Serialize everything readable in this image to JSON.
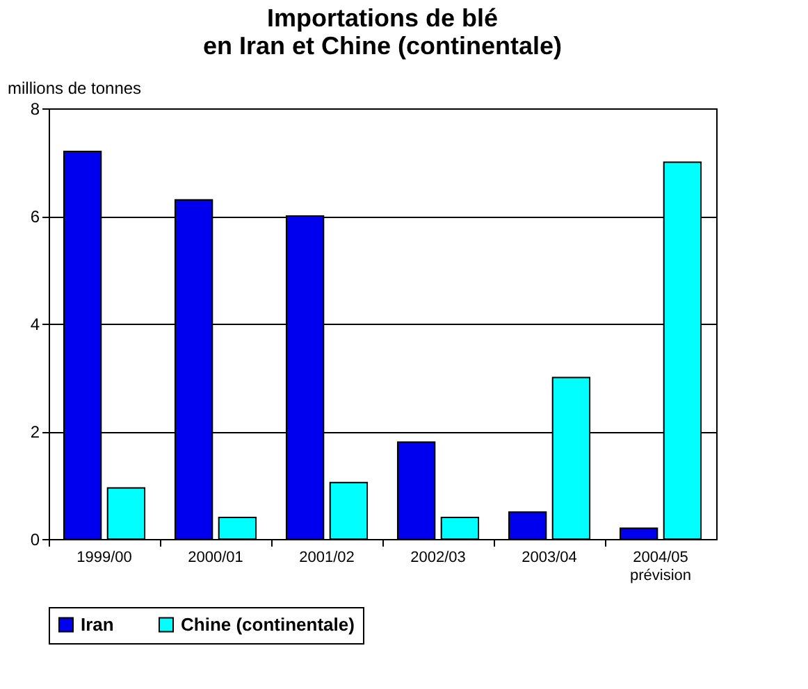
{
  "chart_data": {
    "type": "bar",
    "title": [
      "Importations de blé",
      "en Iran et Chine (continentale)"
    ],
    "ylabel": "millions de tonnes",
    "categories": [
      "1999/00",
      "2000/01",
      "2001/02",
      "2002/03",
      "2003/04",
      "2004/05\nprévision"
    ],
    "series": [
      {
        "name": "Iran",
        "color": "#0000ee",
        "values": [
          7.2,
          6.3,
          6.0,
          1.8,
          0.5,
          0.2
        ]
      },
      {
        "name": "Chine (continentale)",
        "color": "#00ffff",
        "values": [
          0.95,
          0.4,
          1.05,
          0.4,
          3.0,
          7.0
        ]
      }
    ],
    "ylim": [
      0,
      8
    ],
    "yticks": [
      0,
      2,
      4,
      6,
      8
    ],
    "grid": "y",
    "legend": "bottom"
  }
}
